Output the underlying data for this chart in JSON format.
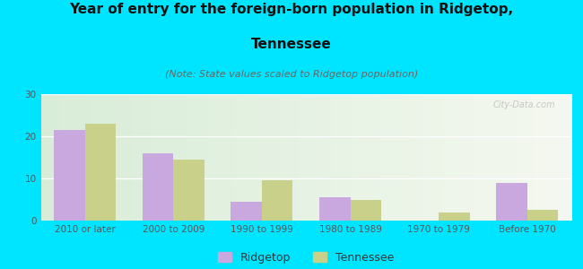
{
  "title_line1": "Year of entry for the foreign-born population in Ridgetop,",
  "title_line2": "Tennessee",
  "subtitle": "(Note: State values scaled to Ridgetop population)",
  "categories": [
    "2010 or later",
    "2000 to 2009",
    "1990 to 1999",
    "1980 to 1989",
    "1970 to 1979",
    "Before 1970"
  ],
  "ridgetop_values": [
    21.5,
    16.0,
    4.5,
    5.5,
    0,
    9.0
  ],
  "tennessee_values": [
    23.0,
    14.5,
    9.5,
    5.0,
    2.0,
    2.5
  ],
  "ridgetop_color": "#c9a8e0",
  "tennessee_color": "#c8d08a",
  "background_outer": "#00e5ff",
  "background_plot_left": "#d8edd8",
  "background_plot_right": "#f5f8f0",
  "ylim": [
    0,
    30
  ],
  "yticks": [
    0,
    10,
    20,
    30
  ],
  "bar_width": 0.35,
  "title_fontsize": 11,
  "subtitle_fontsize": 8,
  "tick_fontsize": 7.5,
  "legend_fontsize": 9,
  "watermark": "City-Data.com"
}
